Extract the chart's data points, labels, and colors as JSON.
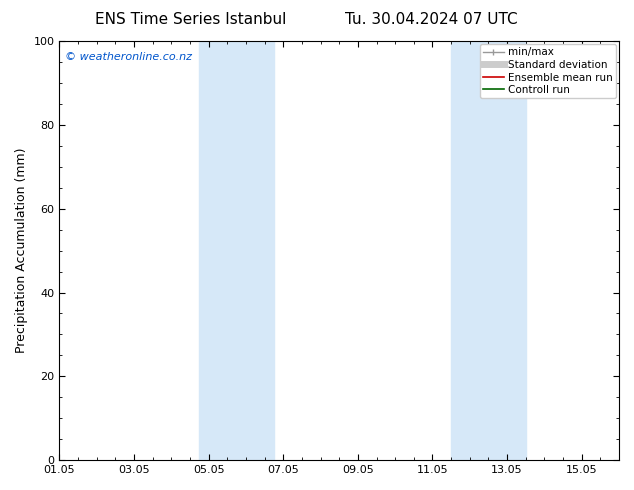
{
  "title_left": "ENS Time Series Istanbul",
  "title_right": "Tu. 30.04.2024 07 UTC",
  "ylabel": "Precipitation Accumulation (mm)",
  "ylim": [
    0,
    100
  ],
  "yticks": [
    0,
    20,
    40,
    60,
    80,
    100
  ],
  "xtick_labels": [
    "01.05",
    "03.05",
    "05.05",
    "07.05",
    "09.05",
    "11.05",
    "13.05",
    "15.05"
  ],
  "xtick_positions": [
    0,
    2,
    4,
    6,
    8,
    10,
    12,
    14
  ],
  "xlim": [
    0,
    15
  ],
  "shaded_bands": [
    {
      "x_start": 3.75,
      "x_end": 5.75
    },
    {
      "x_start": 10.5,
      "x_end": 12.5
    }
  ],
  "shade_color": "#d6e8f8",
  "watermark_text": "© weatheronline.co.nz",
  "watermark_color": "#0055cc",
  "legend_labels": [
    "min/max",
    "Standard deviation",
    "Ensemble mean run",
    "Controll run"
  ],
  "legend_colors": [
    "#999999",
    "#cccccc",
    "#cc0000",
    "#006600"
  ],
  "bg_color": "#ffffff",
  "title_fontsize": 11,
  "label_fontsize": 9,
  "tick_fontsize": 8,
  "legend_fontsize": 7.5,
  "watermark_fontsize": 8
}
